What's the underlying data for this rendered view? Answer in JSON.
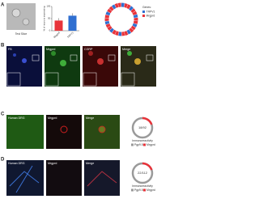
{
  "panel_a": {
    "label": "A",
    "image_caption": "Test Slice",
    "chart": {
      "type": "bar",
      "y_label": "% of neurons expressing",
      "ylim": [
        0,
        100
      ],
      "yticks": [
        0,
        50,
        100
      ],
      "categories": [
        "Mrgprd",
        "TRPV1"
      ],
      "values": [
        42,
        62
      ],
      "colors": [
        "#e8333a",
        "#2f6fd1"
      ]
    },
    "legend_title": "Genes:",
    "legend": [
      {
        "name": "TRPV1",
        "color": "#2f6fd1"
      },
      {
        "name": "Mrgprd",
        "color": "#e8333a"
      }
    ]
  },
  "panel_b": {
    "label": "B",
    "images": [
      "FB",
      "Mrgprd",
      "CGRP",
      "Merge"
    ]
  },
  "panel_c": {
    "label": "C",
    "images": [
      "Human DRG",
      "Mrgprd",
      "Merge"
    ],
    "ratio": "18/92",
    "ring_caption": "Immunoreactivity",
    "legend": [
      {
        "name": "Pgp9.5",
        "color": "#9a9a9a"
      },
      {
        "name": "Mrgprd",
        "color": "#e8333a"
      }
    ]
  },
  "panel_d": {
    "label": "D",
    "images": [
      "Human DRG",
      "Mrgprd",
      "Merge"
    ],
    "ratio": "22/112",
    "ring_caption": "Immunoreactivity",
    "legend": [
      {
        "name": "Pgp9.5",
        "color": "#9a9a9a"
      },
      {
        "name": "Mrgprd",
        "color": "#e8333a"
      }
    ]
  }
}
